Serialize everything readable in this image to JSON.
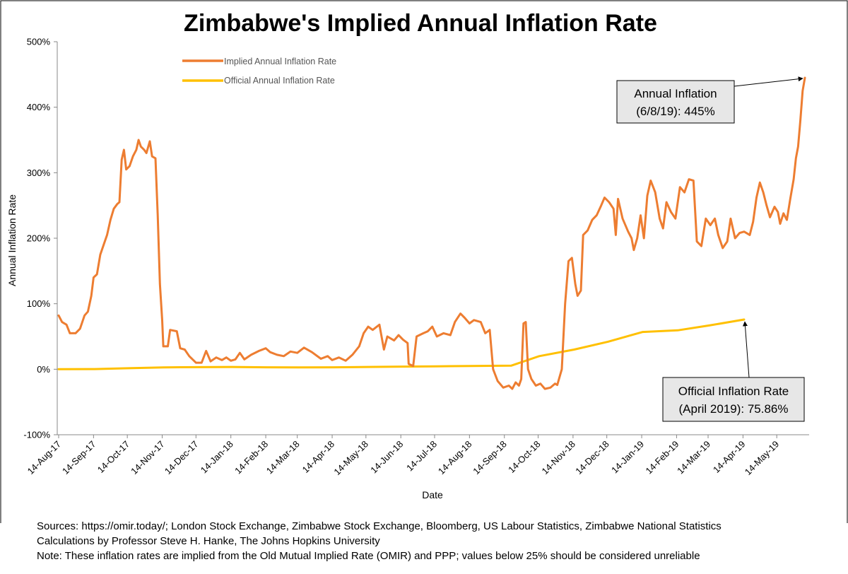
{
  "chart_data": {
    "type": "line",
    "title": "Zimbabwe's Implied Annual Inflation Rate",
    "xlabel": "Date",
    "ylabel": "Annual Inflation Rate",
    "ylim": [
      -100,
      500
    ],
    "yticks": [
      "500%",
      "400%",
      "300%",
      "200%",
      "100%",
      "0%",
      "-100%"
    ],
    "ytick_values": [
      500,
      400,
      300,
      200,
      100,
      0,
      -100
    ],
    "xlim": [
      "2017-08-14",
      "2019-06-08"
    ],
    "x_tick_labels": [
      "14-Aug-17",
      "14-Sep-17",
      "14-Oct-17",
      "14-Nov-17",
      "14-Dec-17",
      "14-Jan-18",
      "14-Feb-18",
      "14-Mar-18",
      "14-Apr-18",
      "14-May-18",
      "14-Jun-18",
      "14-Jul-18",
      "14-Aug-18",
      "14-Sep-18",
      "14-Oct-18",
      "14-Nov-18",
      "14-Dec-18",
      "14-Jan-19",
      "14-Feb-19",
      "14-Mar-19",
      "14-Apr-19",
      "14-May-19"
    ],
    "x_tick_dates": [
      "2017-08-14",
      "2017-09-14",
      "2017-10-14",
      "2017-11-14",
      "2017-12-14",
      "2018-01-14",
      "2018-02-14",
      "2018-03-14",
      "2018-04-14",
      "2018-05-14",
      "2018-06-14",
      "2018-07-14",
      "2018-08-14",
      "2018-09-14",
      "2018-10-14",
      "2018-11-14",
      "2018-12-14",
      "2019-01-14",
      "2019-02-14",
      "2019-03-14",
      "2019-04-14",
      "2019-05-14"
    ],
    "legend_position": "top-left",
    "grid": false,
    "series": [
      {
        "name": "Implied Annual Inflation Rate",
        "color": "#ED7D31",
        "points": [
          [
            "2017-08-14",
            82
          ],
          [
            "2017-08-17",
            72
          ],
          [
            "2017-08-21",
            68
          ],
          [
            "2017-08-24",
            55
          ],
          [
            "2017-08-29",
            55
          ],
          [
            "2017-09-02",
            62
          ],
          [
            "2017-09-06",
            82
          ],
          [
            "2017-09-09",
            88
          ],
          [
            "2017-09-12",
            112
          ],
          [
            "2017-09-14",
            140
          ],
          [
            "2017-09-17",
            145
          ],
          [
            "2017-09-20",
            175
          ],
          [
            "2017-09-23",
            190
          ],
          [
            "2017-09-26",
            205
          ],
          [
            "2017-09-29",
            228
          ],
          [
            "2017-10-02",
            245
          ],
          [
            "2017-10-05",
            252
          ],
          [
            "2017-10-07",
            255
          ],
          [
            "2017-10-09",
            320
          ],
          [
            "2017-10-11",
            335
          ],
          [
            "2017-10-13",
            305
          ],
          [
            "2017-10-16",
            310
          ],
          [
            "2017-10-19",
            325
          ],
          [
            "2017-10-22",
            335
          ],
          [
            "2017-10-24",
            350
          ],
          [
            "2017-10-26",
            340
          ],
          [
            "2017-10-29",
            335
          ],
          [
            "2017-10-31",
            330
          ],
          [
            "2017-11-03",
            348
          ],
          [
            "2017-11-05",
            325
          ],
          [
            "2017-11-08",
            322
          ],
          [
            "2017-11-10",
            235
          ],
          [
            "2017-11-12",
            130
          ],
          [
            "2017-11-14",
            75
          ],
          [
            "2017-11-15",
            35
          ],
          [
            "2017-11-19",
            35
          ],
          [
            "2017-11-21",
            60
          ],
          [
            "2017-11-27",
            58
          ],
          [
            "2017-11-30",
            32
          ],
          [
            "2017-12-04",
            30
          ],
          [
            "2017-12-08",
            20
          ],
          [
            "2017-12-14",
            10
          ],
          [
            "2017-12-19",
            10
          ],
          [
            "2017-12-23",
            28
          ],
          [
            "2017-12-27",
            12
          ],
          [
            "2018-01-01",
            18
          ],
          [
            "2018-01-06",
            14
          ],
          [
            "2018-01-10",
            18
          ],
          [
            "2018-01-14",
            13
          ],
          [
            "2018-01-18",
            15
          ],
          [
            "2018-01-22",
            25
          ],
          [
            "2018-01-26",
            15
          ],
          [
            "2018-02-01",
            22
          ],
          [
            "2018-02-08",
            28
          ],
          [
            "2018-02-14",
            32
          ],
          [
            "2018-02-18",
            26
          ],
          [
            "2018-02-24",
            22
          ],
          [
            "2018-03-02",
            20
          ],
          [
            "2018-03-08",
            27
          ],
          [
            "2018-03-14",
            25
          ],
          [
            "2018-03-20",
            33
          ],
          [
            "2018-03-27",
            26
          ],
          [
            "2018-04-04",
            16
          ],
          [
            "2018-04-10",
            20
          ],
          [
            "2018-04-14",
            14
          ],
          [
            "2018-04-20",
            18
          ],
          [
            "2018-04-26",
            13
          ],
          [
            "2018-05-02",
            22
          ],
          [
            "2018-05-08",
            35
          ],
          [
            "2018-05-12",
            55
          ],
          [
            "2018-05-16",
            65
          ],
          [
            "2018-05-20",
            60
          ],
          [
            "2018-05-26",
            68
          ],
          [
            "2018-05-30",
            30
          ],
          [
            "2018-06-02",
            50
          ],
          [
            "2018-06-08",
            44
          ],
          [
            "2018-06-12",
            52
          ],
          [
            "2018-06-16",
            45
          ],
          [
            "2018-06-20",
            40
          ],
          [
            "2018-06-21",
            8
          ],
          [
            "2018-06-25",
            5
          ],
          [
            "2018-06-28",
            50
          ],
          [
            "2018-07-04",
            55
          ],
          [
            "2018-07-08",
            58
          ],
          [
            "2018-07-12",
            65
          ],
          [
            "2018-07-16",
            50
          ],
          [
            "2018-07-22",
            55
          ],
          [
            "2018-07-28",
            52
          ],
          [
            "2018-08-01",
            72
          ],
          [
            "2018-08-06",
            85
          ],
          [
            "2018-08-10",
            78
          ],
          [
            "2018-08-14",
            70
          ],
          [
            "2018-08-18",
            75
          ],
          [
            "2018-08-24",
            72
          ],
          [
            "2018-08-28",
            55
          ],
          [
            "2018-09-01",
            60
          ],
          [
            "2018-09-04",
            0
          ],
          [
            "2018-09-08",
            -18
          ],
          [
            "2018-09-13",
            -28
          ],
          [
            "2018-09-18",
            -25
          ],
          [
            "2018-09-21",
            -30
          ],
          [
            "2018-09-24",
            -20
          ],
          [
            "2018-09-27",
            -25
          ],
          [
            "2018-09-29",
            -15
          ],
          [
            "2018-10-01",
            70
          ],
          [
            "2018-10-03",
            72
          ],
          [
            "2018-10-05",
            0
          ],
          [
            "2018-10-08",
            -15
          ],
          [
            "2018-10-12",
            -25
          ],
          [
            "2018-10-16",
            -22
          ],
          [
            "2018-10-20",
            -30
          ],
          [
            "2018-10-25",
            -28
          ],
          [
            "2018-10-29",
            -22
          ],
          [
            "2018-10-31",
            -24
          ],
          [
            "2018-11-04",
            0
          ],
          [
            "2018-11-07",
            100
          ],
          [
            "2018-11-10",
            165
          ],
          [
            "2018-11-13",
            170
          ],
          [
            "2018-11-16",
            130
          ],
          [
            "2018-11-18",
            112
          ],
          [
            "2018-11-21",
            120
          ],
          [
            "2018-11-23",
            205
          ],
          [
            "2018-11-27",
            212
          ],
          [
            "2018-12-01",
            228
          ],
          [
            "2018-12-05",
            235
          ],
          [
            "2018-12-09",
            250
          ],
          [
            "2018-12-12",
            262
          ],
          [
            "2018-12-16",
            255
          ],
          [
            "2018-12-20",
            245
          ],
          [
            "2018-12-22",
            205
          ],
          [
            "2018-12-24",
            260
          ],
          [
            "2018-12-28",
            230
          ],
          [
            "2019-01-02",
            210
          ],
          [
            "2019-01-05",
            200
          ],
          [
            "2019-01-07",
            182
          ],
          [
            "2019-01-10",
            200
          ],
          [
            "2019-01-13",
            235
          ],
          [
            "2019-01-16",
            200
          ],
          [
            "2019-01-19",
            265
          ],
          [
            "2019-01-22",
            288
          ],
          [
            "2019-01-26",
            270
          ],
          [
            "2019-01-30",
            230
          ],
          [
            "2019-02-02",
            215
          ],
          [
            "2019-02-05",
            255
          ],
          [
            "2019-02-09",
            240
          ],
          [
            "2019-02-13",
            230
          ],
          [
            "2019-02-17",
            278
          ],
          [
            "2019-02-21",
            270
          ],
          [
            "2019-02-25",
            290
          ],
          [
            "2019-03-01",
            288
          ],
          [
            "2019-03-04",
            195
          ],
          [
            "2019-03-08",
            188
          ],
          [
            "2019-03-12",
            230
          ],
          [
            "2019-03-16",
            220
          ],
          [
            "2019-03-20",
            230
          ],
          [
            "2019-03-23",
            205
          ],
          [
            "2019-03-27",
            185
          ],
          [
            "2019-03-31",
            195
          ],
          [
            "2019-04-03",
            230
          ],
          [
            "2019-04-07",
            200
          ],
          [
            "2019-04-11",
            208
          ],
          [
            "2019-04-15",
            210
          ],
          [
            "2019-04-20",
            205
          ],
          [
            "2019-04-23",
            225
          ],
          [
            "2019-04-26",
            262
          ],
          [
            "2019-04-29",
            285
          ],
          [
            "2019-05-02",
            270
          ],
          [
            "2019-05-05",
            250
          ],
          [
            "2019-05-08",
            232
          ],
          [
            "2019-05-12",
            248
          ],
          [
            "2019-05-15",
            240
          ],
          [
            "2019-05-17",
            222
          ],
          [
            "2019-05-20",
            238
          ],
          [
            "2019-05-23",
            228
          ],
          [
            "2019-05-26",
            260
          ],
          [
            "2019-05-29",
            290
          ],
          [
            "2019-05-31",
            322
          ],
          [
            "2019-06-02",
            340
          ],
          [
            "2019-06-04",
            380
          ],
          [
            "2019-06-06",
            425
          ],
          [
            "2019-06-08",
            445
          ]
        ]
      },
      {
        "name": "Official Annual Inflation Rate",
        "color": "#FFC000",
        "points": [
          [
            "2017-08-14",
            0
          ],
          [
            "2017-09-15",
            0.3
          ],
          [
            "2017-10-15",
            1.5
          ],
          [
            "2017-11-15",
            2.8
          ],
          [
            "2017-12-15",
            3.2
          ],
          [
            "2018-01-15",
            3.5
          ],
          [
            "2018-02-15",
            3.0
          ],
          [
            "2018-03-15",
            2.8
          ],
          [
            "2018-04-15",
            3.0
          ],
          [
            "2018-05-15",
            3.5
          ],
          [
            "2018-06-15",
            4.0
          ],
          [
            "2018-07-15",
            4.5
          ],
          [
            "2018-08-15",
            5.0
          ],
          [
            "2018-09-20",
            5.4
          ],
          [
            "2018-10-15",
            20
          ],
          [
            "2018-11-15",
            30
          ],
          [
            "2018-12-15",
            42
          ],
          [
            "2019-01-15",
            56.9
          ],
          [
            "2019-02-15",
            59.4
          ],
          [
            "2019-03-15",
            66.8
          ],
          [
            "2019-04-15",
            75.86
          ]
        ]
      }
    ],
    "annotations": [
      {
        "lines": [
          "Annual Inflation",
          "(6/8/19): 445%"
        ],
        "points_to": [
          "2019-06-08",
          445
        ]
      },
      {
        "lines": [
          "Official Inflation Rate",
          "(April 2019): 75.86%"
        ],
        "points_to": [
          "2019-04-15",
          75.86
        ]
      }
    ]
  },
  "footer": {
    "line1": "Sources: https://omir.today/; London Stock Exchange, Zimbabwe Stock Exchange, Bloomberg, US Labour Statistics, Zimbabwe National Statistics",
    "line2": "Calculations by Professor Steve H. Hanke, The Johns Hopkins University",
    "line3": "Note: These inflation rates are implied from the Old Mutual Implied Rate (OMIR) and PPP; values below 25% should be considered unreliable"
  }
}
